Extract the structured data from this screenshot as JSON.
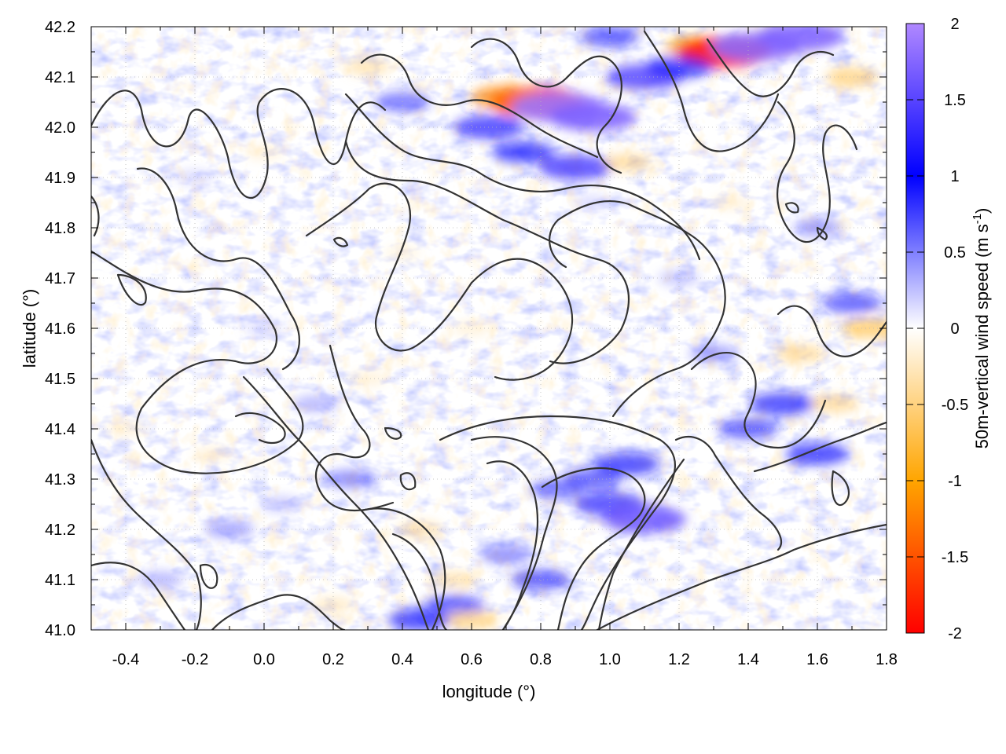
{
  "chart_data": {
    "type": "heatmap",
    "title": "",
    "xlabel": "longitude (°)",
    "ylabel": "latitude (°)",
    "xlim": [
      -0.5,
      1.8
    ],
    "ylim": [
      41.0,
      42.2
    ],
    "xticks": [
      -0.4,
      -0.2,
      0.0,
      0.2,
      0.4,
      0.6,
      0.8,
      1.0,
      1.2,
      1.4,
      1.6,
      1.8
    ],
    "xtick_labels": [
      "-0.4",
      "-0.2",
      "0.0",
      "0.2",
      "0.4",
      "0.6",
      "0.8",
      "1.0",
      "1.2",
      "1.4",
      "1.6",
      "1.8"
    ],
    "yticks": [
      41.0,
      41.1,
      41.2,
      41.3,
      41.4,
      41.5,
      41.6,
      41.7,
      41.8,
      41.9,
      42.0,
      42.1,
      42.2
    ],
    "ytick_labels": [
      "41.0",
      "41.1",
      "41.2",
      "41.3",
      "41.4",
      "41.5",
      "41.6",
      "41.7",
      "41.8",
      "41.9",
      "42.0",
      "42.1",
      "42.2"
    ],
    "grid": true,
    "colorbar": {
      "label_prefix": "50m-vertical wind speed (m s",
      "label_exponent": "-1",
      "label_suffix": ")",
      "range": [
        -2,
        2
      ],
      "ticks": [
        2,
        1.5,
        1,
        0.5,
        0,
        -0.5,
        -1,
        -1.5,
        -2
      ],
      "tick_labels": [
        "2",
        "1.5",
        "1",
        "0.5",
        "0",
        "-0.5",
        "-1",
        "-1.5",
        "-2"
      ],
      "colors": [
        {
          "value": -2,
          "color": "#ff0000"
        },
        {
          "value": -1,
          "color": "#ffa500"
        },
        {
          "value": 0,
          "color": "#ffffff"
        },
        {
          "value": 1,
          "color": "#0000ff"
        },
        {
          "value": 2,
          "color": "#b088ff"
        }
      ]
    },
    "features": [
      {
        "lon": 0.79,
        "lat": 42.05,
        "value": -1.9
      },
      {
        "lon": 0.7,
        "lat": 42.06,
        "value": -1.2
      },
      {
        "lon": 0.85,
        "lat": 42.04,
        "value": 1.9
      },
      {
        "lon": 0.95,
        "lat": 42.02,
        "value": 1.7
      },
      {
        "lon": 0.65,
        "lat": 42.0,
        "value": 1.2
      },
      {
        "lon": 0.75,
        "lat": 41.95,
        "value": 1.0
      },
      {
        "lon": 0.9,
        "lat": 41.92,
        "value": 1.3
      },
      {
        "lon": 1.05,
        "lat": 41.93,
        "value": -0.6
      },
      {
        "lon": 1.1,
        "lat": 42.1,
        "value": 1.4
      },
      {
        "lon": 1.25,
        "lat": 42.16,
        "value": -1.0
      },
      {
        "lon": 1.33,
        "lat": 42.15,
        "value": -1.9
      },
      {
        "lon": 1.42,
        "lat": 42.16,
        "value": 1.8
      },
      {
        "lon": 1.55,
        "lat": 42.18,
        "value": 1.7
      },
      {
        "lon": 1.7,
        "lat": 42.1,
        "value": -0.7
      },
      {
        "lon": 1.2,
        "lat": 42.12,
        "value": 1.1
      },
      {
        "lon": 1.0,
        "lat": 42.18,
        "value": 0.9
      },
      {
        "lon": 0.3,
        "lat": 42.12,
        "value": -0.5
      },
      {
        "lon": 0.4,
        "lat": 42.05,
        "value": 0.8
      },
      {
        "lon": 1.6,
        "lat": 41.8,
        "value": 0.6
      },
      {
        "lon": 1.7,
        "lat": 41.65,
        "value": 0.9
      },
      {
        "lon": 1.55,
        "lat": 41.55,
        "value": -0.6
      },
      {
        "lon": 1.5,
        "lat": 41.45,
        "value": 1.1
      },
      {
        "lon": 1.4,
        "lat": 41.4,
        "value": 0.9
      },
      {
        "lon": 1.6,
        "lat": 41.35,
        "value": 1.0
      },
      {
        "lon": 1.75,
        "lat": 41.6,
        "value": -0.8
      },
      {
        "lon": 1.65,
        "lat": 41.45,
        "value": -0.6
      },
      {
        "lon": 1.05,
        "lat": 41.33,
        "value": 1.1
      },
      {
        "lon": 1.0,
        "lat": 41.25,
        "value": 1.2
      },
      {
        "lon": 0.95,
        "lat": 41.3,
        "value": 0.9
      },
      {
        "lon": 1.1,
        "lat": 41.22,
        "value": 1.6
      },
      {
        "lon": 0.85,
        "lat": 41.28,
        "value": 0.8
      },
      {
        "lon": 0.8,
        "lat": 41.1,
        "value": 0.9
      },
      {
        "lon": 0.7,
        "lat": 41.15,
        "value": 0.7
      },
      {
        "lon": 0.55,
        "lat": 41.05,
        "value": 0.9
      },
      {
        "lon": 0.45,
        "lat": 41.02,
        "value": 1.0
      },
      {
        "lon": 0.6,
        "lat": 41.02,
        "value": -0.7
      },
      {
        "lon": 0.45,
        "lat": 41.2,
        "value": -0.5
      },
      {
        "lon": 0.55,
        "lat": 41.1,
        "value": -0.5
      },
      {
        "lon": 0.25,
        "lat": 41.3,
        "value": 0.7
      },
      {
        "lon": 0.3,
        "lat": 41.5,
        "value": -0.3
      },
      {
        "lon": 0.15,
        "lat": 41.45,
        "value": 0.5
      },
      {
        "lon": -0.15,
        "lat": 41.35,
        "value": -0.3
      },
      {
        "lon": -0.1,
        "lat": 41.2,
        "value": 0.6
      },
      {
        "lon": -0.4,
        "lat": 41.4,
        "value": -0.3
      },
      {
        "lon": -0.3,
        "lat": 41.1,
        "value": 0.5
      },
      {
        "lon": 0.0,
        "lat": 41.6,
        "value": 0.3
      },
      {
        "lon": 0.6,
        "lat": 41.6,
        "value": -0.3
      },
      {
        "lon": 0.4,
        "lat": 41.75,
        "value": -0.25
      },
      {
        "lon": -0.2,
        "lat": 41.9,
        "value": 0.3
      },
      {
        "lon": 0.0,
        "lat": 41.95,
        "value": -0.3
      },
      {
        "lon": 1.2,
        "lat": 41.7,
        "value": 0.4
      },
      {
        "lon": 1.3,
        "lat": 41.55,
        "value": 0.6
      },
      {
        "lon": 1.35,
        "lat": 41.85,
        "value": -0.3
      },
      {
        "lon": 0.95,
        "lat": 41.85,
        "value": 0.3
      },
      {
        "lon": 0.2,
        "lat": 41.05,
        "value": -0.4
      },
      {
        "lon": 0.05,
        "lat": 41.25,
        "value": 0.4
      }
    ]
  }
}
